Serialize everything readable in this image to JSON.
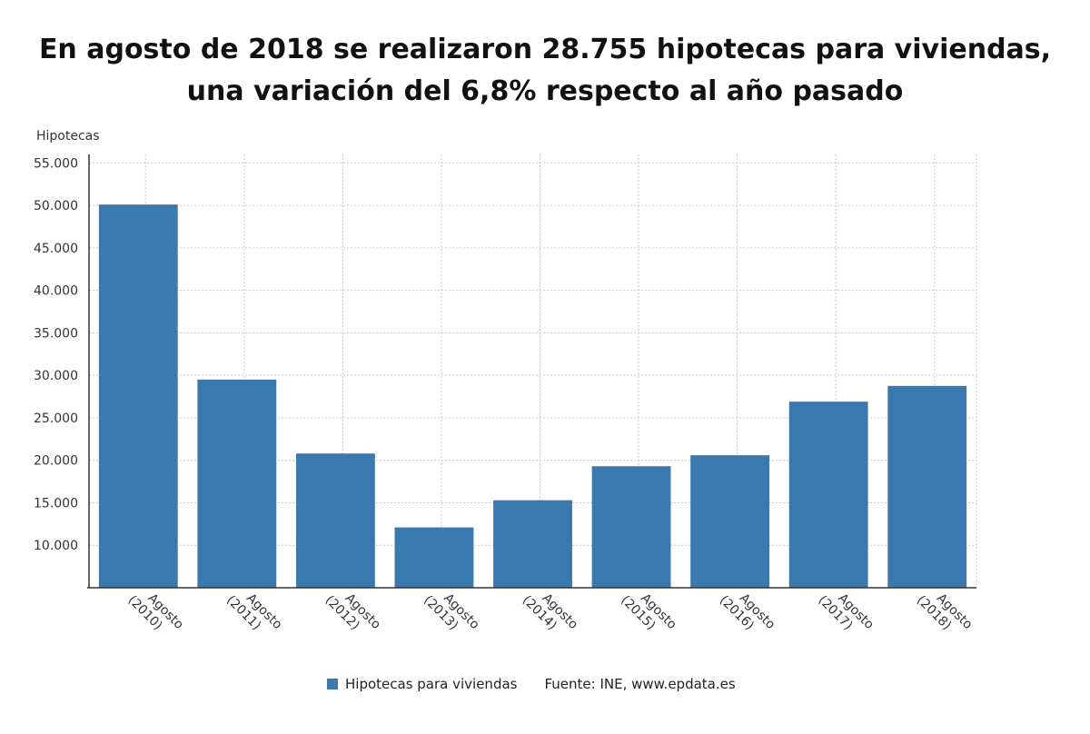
{
  "chart_data": {
    "type": "bar",
    "title": "En agosto de 2018 se realizaron 28.755 hipotecas para viviendas, una variación del 6,8% respecto al año pasado",
    "ylabel": "Hipotecas",
    "xlabel": "",
    "ylim": [
      5000,
      56000
    ],
    "yticks": [
      "10.000",
      "15.000",
      "20.000",
      "25.000",
      "30.000",
      "35.000",
      "40.000",
      "45.000",
      "50.000",
      "55.000"
    ],
    "ytick_values": [
      10000,
      15000,
      20000,
      25000,
      30000,
      35000,
      40000,
      45000,
      50000,
      55000
    ],
    "categories": [
      "Agosto (2010)",
      "Agosto (2011)",
      "Agosto (2012)",
      "Agosto (2013)",
      "Agosto (2014)",
      "Agosto (2015)",
      "Agosto (2016)",
      "Agosto (2017)",
      "Agosto (2018)"
    ],
    "series": [
      {
        "name": "Hipotecas para viviendas",
        "color": "#3a78b0",
        "values": [
          50100,
          29500,
          20800,
          12100,
          15300,
          19300,
          20600,
          26900,
          28755
        ]
      }
    ],
    "grid": true,
    "legend": "bottom-center",
    "source": "Fuente: INE, www.epdata.es"
  }
}
